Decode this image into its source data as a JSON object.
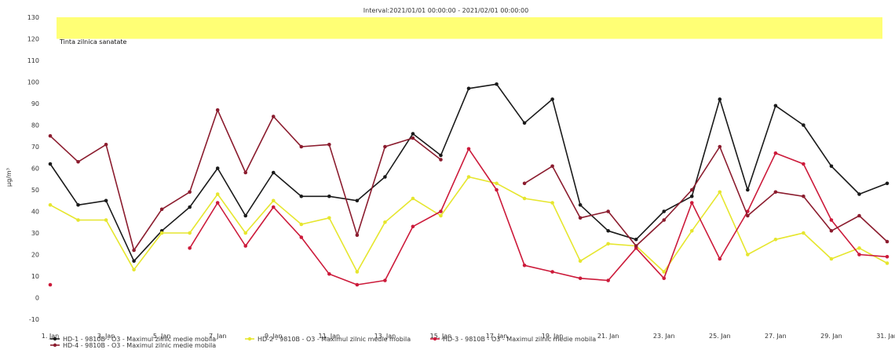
{
  "chart_data": {
    "type": "line",
    "title": "Interval:2021/01/01 00:00:00 - 2021/02/01 00:00:00",
    "ylabel": "µg/m³",
    "xlabel": "",
    "target_band_label": "Tinta zilnica sanatate",
    "target_band_color": "#ffff66",
    "target_band_range": [
      120,
      130
    ],
    "ylim": [
      -10,
      130
    ],
    "yticks": [
      -10,
      0,
      10,
      20,
      30,
      40,
      50,
      60,
      70,
      80,
      90,
      100,
      110,
      120,
      130
    ],
    "x": [
      "1. Jan",
      "2. Jan",
      "3. Jan",
      "4. Jan",
      "5. Jan",
      "6. Jan",
      "7. Jan",
      "8. Jan",
      "9. Jan",
      "10. Jan",
      "11. Jan",
      "12. Jan",
      "13. Jan",
      "14. Jan",
      "15. Jan",
      "16. Jan",
      "17. Jan",
      "18. Jan",
      "19. Jan",
      "20. Jan",
      "21. Jan",
      "22. Jan",
      "23. Jan",
      "24. Jan",
      "25. Jan",
      "26. Jan",
      "27. Jan",
      "28. Jan",
      "29. Jan",
      "30. Jan",
      "31. Jan"
    ],
    "xtick_labels": [
      "1. Jan",
      "3. Jan",
      "5. Jan",
      "7. Jan",
      "9. Jan",
      "11. Jan",
      "13. Jan",
      "15. Jan",
      "17. Jan",
      "19. Jan",
      "21. Jan",
      "23. Jan",
      "25. Jan",
      "27. Jan",
      "29. Jan",
      "31. Jan"
    ],
    "grid": false,
    "legend_position": "bottom-left",
    "series": [
      {
        "name": "HD-1 - 9810B - O3 - Maximul zilnic medie mobila",
        "color": "#1a1a1a",
        "values": [
          62,
          43,
          45,
          17,
          31,
          42,
          60,
          38,
          58,
          47,
          47,
          45,
          56,
          76,
          66,
          97,
          99,
          81,
          92,
          43,
          31,
          27,
          40,
          47,
          92,
          50,
          89,
          80,
          61,
          48,
          53
        ]
      },
      {
        "name": "HD-2 - 9810B - O3 - Maximul zilnic medie mobila",
        "color": "#e6e62e",
        "values": [
          43,
          36,
          36,
          13,
          30,
          30,
          48,
          30,
          45,
          34,
          37,
          12,
          35,
          46,
          38,
          56,
          53,
          46,
          44,
          17,
          25,
          24,
          12,
          31,
          49,
          20,
          27,
          30,
          18,
          23,
          16
        ]
      },
      {
        "name": "HD-3 - 9810B - O3 - Maximul zilnic medie mobila",
        "color": "#cc1a3a",
        "values": [
          6,
          null,
          null,
          null,
          null,
          23,
          44,
          24,
          42,
          28,
          11,
          6,
          8,
          33,
          40,
          69,
          50,
          15,
          12,
          9,
          8,
          23,
          9,
          44,
          18,
          40,
          67,
          62,
          36,
          20,
          19
        ]
      },
      {
        "name": "HD-4 - 9810B - O3 - Maximul zilnic medie mobila",
        "color": "#8b1c2e",
        "values": [
          75,
          63,
          71,
          22,
          41,
          49,
          87,
          58,
          84,
          70,
          71,
          29,
          70,
          74,
          64,
          null,
          null,
          53,
          61,
          37,
          40,
          24,
          36,
          50,
          70,
          38,
          49,
          47,
          31,
          38,
          26
        ]
      }
    ]
  }
}
